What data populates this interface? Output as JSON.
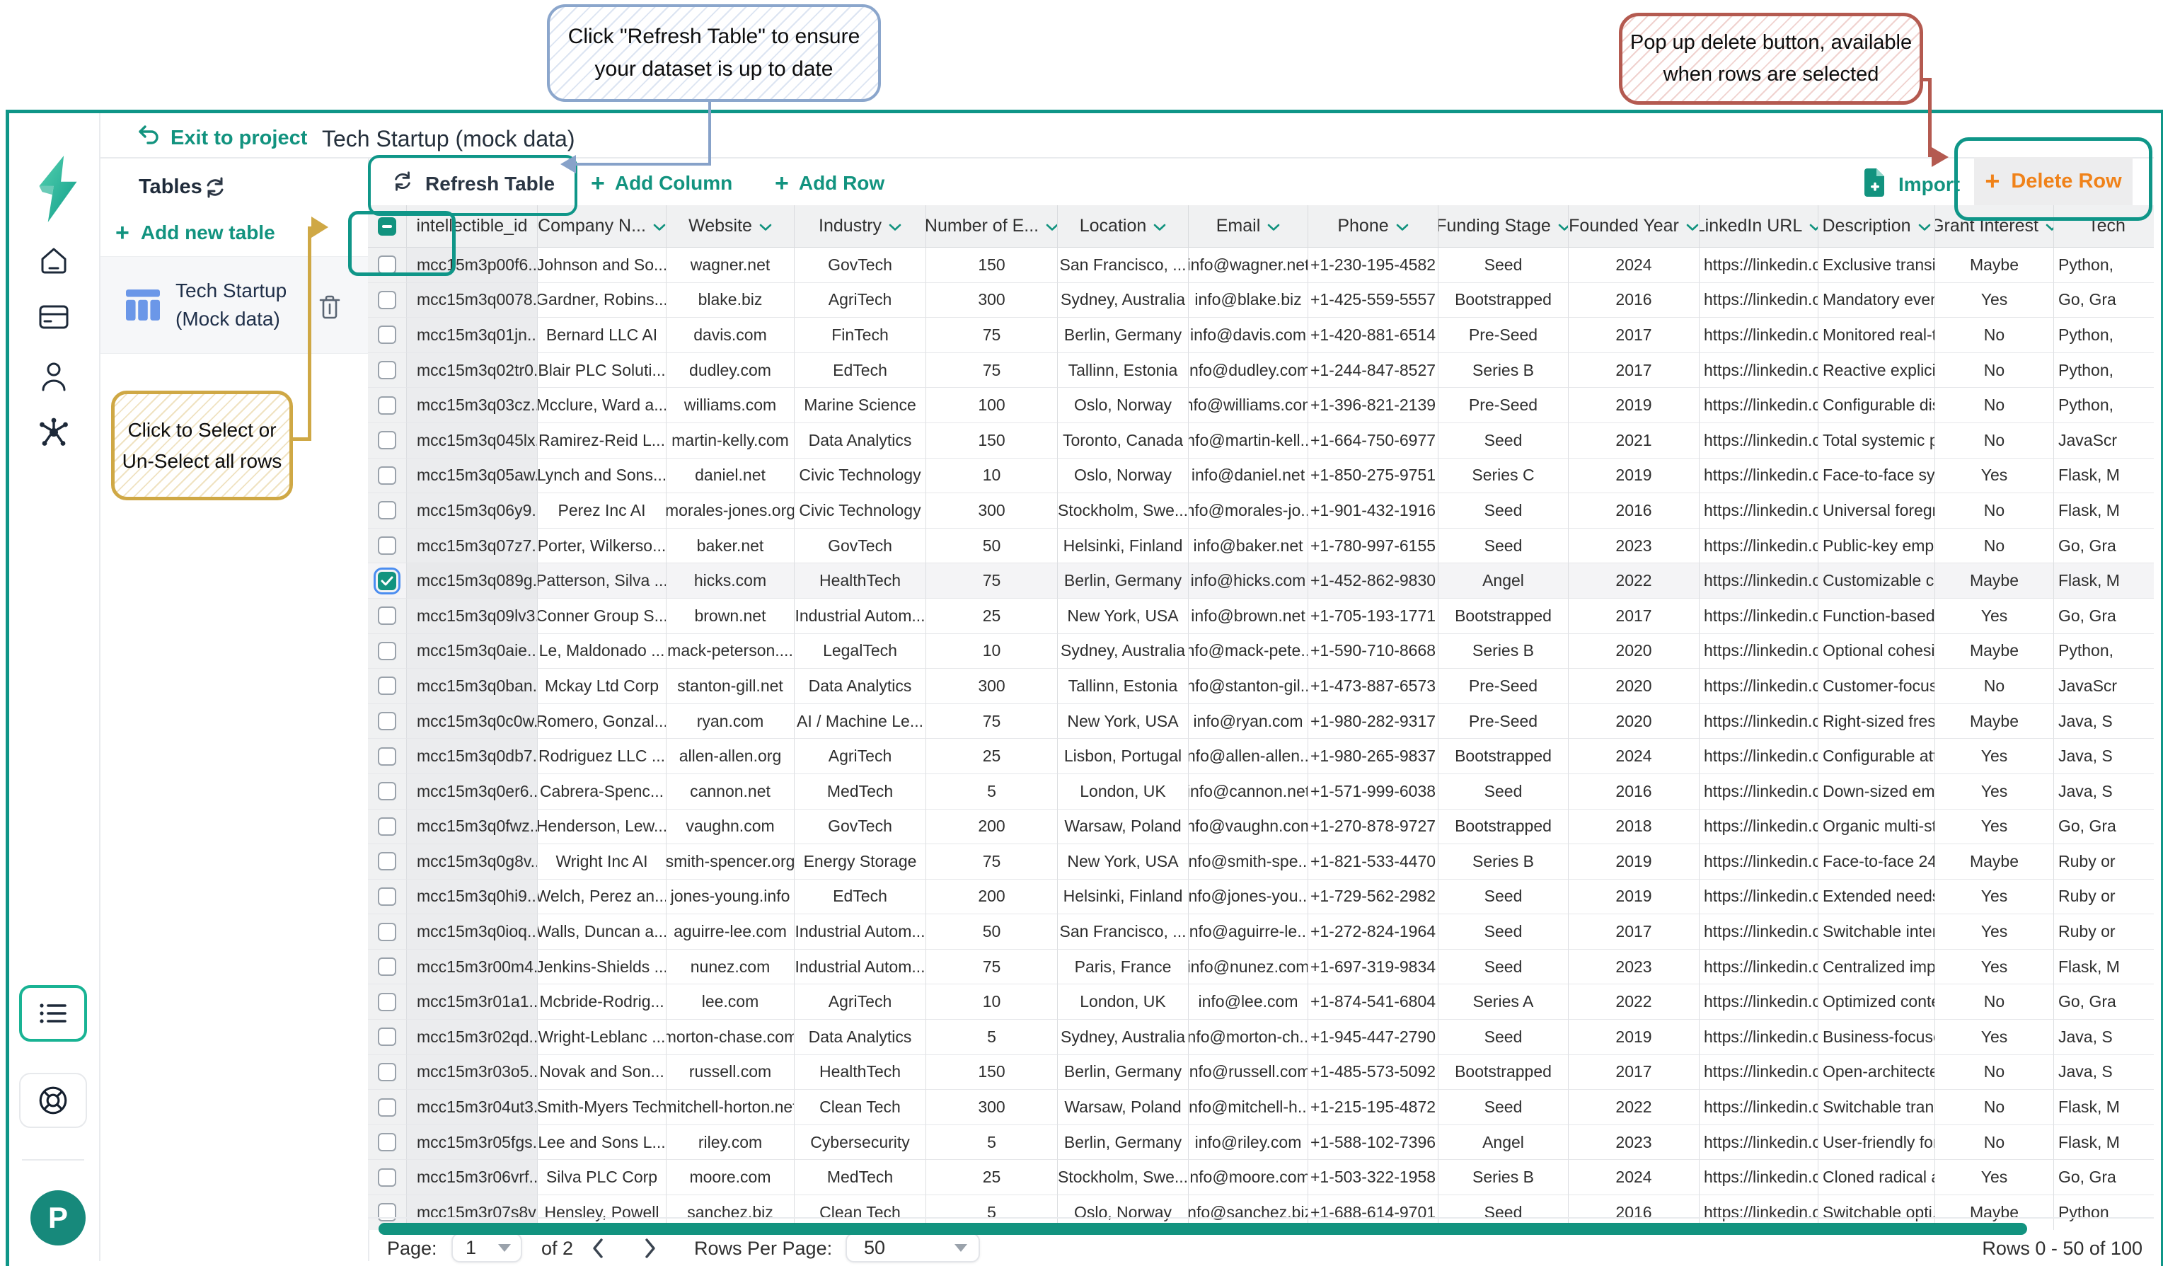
{
  "annotations": {
    "refresh_callout": {
      "line1": "Click \"Refresh Table\" to ensure",
      "line2": "your dataset is up to date"
    },
    "delete_callout": {
      "line1": "Pop up delete button, available",
      "line2": "when rows are selected"
    },
    "select_callout": {
      "line1": "Click to Select or",
      "line2": "Un-Select all rows"
    }
  },
  "app": {
    "exit_label": "Exit to project",
    "title": "Tech Startup (mock data)"
  },
  "user": {
    "initial": "P"
  },
  "icons": {
    "plus": "+"
  },
  "sidebar": {
    "tables_label": "Tables",
    "add_new_table_label": "Add new table",
    "table_item": {
      "name_line1": "Tech Startup",
      "name_line2": "(Mock data)"
    }
  },
  "toolbar": {
    "refresh_label": "Refresh Table",
    "add_column_label": "Add Column",
    "add_row_label": "Add Row",
    "import_label": "Import",
    "delete_row_label": "Delete Row"
  },
  "footer": {
    "page_label": "Page:",
    "page_value": "1",
    "of_label": "of 2",
    "rows_per_page_label": "Rows Per Page:",
    "rows_per_page_value": "50",
    "range_label": "Rows 0 - 50 of 100"
  },
  "colors": {
    "accent_teal": "#12937f",
    "frame_teal": "#0f9688",
    "delete_orange": "#f08219",
    "callout_blue_border": "#8ba6cc",
    "callout_red_border": "#b45a50",
    "callout_yellow_border": "#cfa845",
    "table_icon_blue": "#6b97e8",
    "checkbox_focus_blue": "#4b8df0"
  },
  "table": {
    "checked_row_index": 9,
    "columns": [
      {
        "label": "intellectible_id",
        "chevron": false
      },
      {
        "label": "Company N...",
        "chevron": true
      },
      {
        "label": "Website",
        "chevron": true
      },
      {
        "label": "Industry",
        "chevron": true
      },
      {
        "label": "Number of E...",
        "chevron": true
      },
      {
        "label": "Location",
        "chevron": true
      },
      {
        "label": "Email",
        "chevron": true
      },
      {
        "label": "Phone",
        "chevron": true
      },
      {
        "label": "Funding Stage",
        "chevron": true
      },
      {
        "label": "Founded Year",
        "chevron": true
      },
      {
        "label": "LinkedIn URL",
        "chevron": true
      },
      {
        "label": "Description",
        "chevron": true
      },
      {
        "label": "Grant Interest",
        "chevron": true
      },
      {
        "label": "Tech",
        "chevron": false
      }
    ],
    "rows": [
      [
        "mcc15m3p00f6...",
        "Johnson and So...",
        "wagner.net",
        "GovTech",
        "150",
        "San Francisco, ...",
        "info@wagner.net",
        "+1-230-195-4582",
        "Seed",
        "2024",
        "https://linkedin.c...",
        "Exclusive transit...",
        "Maybe",
        "Python,"
      ],
      [
        "mcc15m3q0078...",
        "Gardner, Robins...",
        "blake.biz",
        "AgriTech",
        "300",
        "Sydney, Australia",
        "info@blake.biz",
        "+1-425-559-5557",
        "Bootstrapped",
        "2016",
        "https://linkedin.c...",
        "Mandatory even...",
        "Yes",
        "Go, Gra"
      ],
      [
        "mcc15m3q01jn...",
        "Bernard LLC AI",
        "davis.com",
        "FinTech",
        "75",
        "Berlin, Germany",
        "info@davis.com",
        "+1-420-881-6514",
        "Pre-Seed",
        "2017",
        "https://linkedin.c...",
        "Monitored real-ti...",
        "No",
        "Python,"
      ],
      [
        "mcc15m3q02tr0...",
        "Blair PLC Soluti...",
        "dudley.com",
        "EdTech",
        "75",
        "Tallinn, Estonia",
        "info@dudley.com",
        "+1-244-847-8527",
        "Series B",
        "2017",
        "https://linkedin.c...",
        "Reactive explicit...",
        "No",
        "Python,"
      ],
      [
        "mcc15m3q03cz...",
        "Mcclure, Ward a...",
        "williams.com",
        "Marine Science",
        "100",
        "Oslo, Norway",
        "info@williams.com",
        "+1-396-821-2139",
        "Pre-Seed",
        "2019",
        "https://linkedin.c...",
        "Configurable dis...",
        "No",
        "Python,"
      ],
      [
        "mcc15m3q045lx...",
        "Ramirez-Reid L...",
        "martin-kelly.com",
        "Data Analytics",
        "150",
        "Toronto, Canada",
        "info@martin-kell...",
        "+1-664-750-6977",
        "Seed",
        "2021",
        "https://linkedin.c...",
        "Total systemic p...",
        "No",
        "JavaScr"
      ],
      [
        "mcc15m3q05aw...",
        "Lynch and Sons...",
        "daniel.net",
        "Civic Technology",
        "10",
        "Oslo, Norway",
        "info@daniel.net",
        "+1-850-275-9751",
        "Series C",
        "2019",
        "https://linkedin.c...",
        "Face-to-face sy...",
        "Yes",
        "Flask, M"
      ],
      [
        "mcc15m3q06y9...",
        "Perez Inc AI",
        "morales-jones.org",
        "Civic Technology",
        "300",
        "Stockholm, Swe...",
        "info@morales-jo...",
        "+1-901-432-1916",
        "Seed",
        "2016",
        "https://linkedin.c...",
        "Universal foregr...",
        "No",
        "Flask, M"
      ],
      [
        "mcc15m3q07z7...",
        "Porter, Wilkerso...",
        "baker.net",
        "GovTech",
        "50",
        "Helsinki, Finland",
        "info@baker.net",
        "+1-780-997-6155",
        "Seed",
        "2023",
        "https://linkedin.c...",
        "Public-key emp...",
        "No",
        "Go, Gra"
      ],
      [
        "mcc15m3q089g...",
        "Patterson, Silva ...",
        "hicks.com",
        "HealthTech",
        "75",
        "Berlin, Germany",
        "info@hicks.com",
        "+1-452-862-9830",
        "Angel",
        "2022",
        "https://linkedin.c...",
        "Customizable c...",
        "Maybe",
        "Flask, M"
      ],
      [
        "mcc15m3q09lv3...",
        "Conner Group S...",
        "brown.net",
        "Industrial Autom...",
        "25",
        "New York, USA",
        "info@brown.net",
        "+1-705-193-1771",
        "Bootstrapped",
        "2017",
        "https://linkedin.c...",
        "Function-based ...",
        "Yes",
        "Go, Gra"
      ],
      [
        "mcc15m3q0aie...",
        "Le, Maldonado ...",
        "mack-peterson....",
        "LegalTech",
        "10",
        "Sydney, Australia",
        "info@mack-pete...",
        "+1-590-710-8668",
        "Series B",
        "2020",
        "https://linkedin.c...",
        "Optional cohesi...",
        "Maybe",
        "Python,"
      ],
      [
        "mcc15m3q0ban...",
        "Mckay Ltd Corp",
        "stanton-gill.net",
        "Data Analytics",
        "300",
        "Tallinn, Estonia",
        "info@stanton-gil...",
        "+1-473-887-6573",
        "Pre-Seed",
        "2020",
        "https://linkedin.c...",
        "Customer-focus...",
        "No",
        "JavaScr"
      ],
      [
        "mcc15m3q0c0w...",
        "Romero, Gonzal...",
        "ryan.com",
        "AI / Machine Le...",
        "75",
        "New York, USA",
        "info@ryan.com",
        "+1-980-282-9317",
        "Pre-Seed",
        "2020",
        "https://linkedin.c...",
        "Right-sized fres...",
        "Maybe",
        "Java, S"
      ],
      [
        "mcc15m3q0db7...",
        "Rodriguez LLC ...",
        "allen-allen.org",
        "AgriTech",
        "25",
        "Lisbon, Portugal",
        "info@allen-allen...",
        "+1-980-265-9837",
        "Bootstrapped",
        "2024",
        "https://linkedin.c...",
        "Configurable atti...",
        "Yes",
        "Java, S"
      ],
      [
        "mcc15m3q0er6...",
        "Cabrera-Spenc...",
        "cannon.net",
        "MedTech",
        "5",
        "London, UK",
        "info@cannon.net",
        "+1-571-999-6038",
        "Seed",
        "2016",
        "https://linkedin.c...",
        "Down-sized em...",
        "Yes",
        "Java, S"
      ],
      [
        "mcc15m3q0fwz...",
        "Henderson, Lew...",
        "vaughn.com",
        "GovTech",
        "200",
        "Warsaw, Poland",
        "info@vaughn.com",
        "+1-270-878-9727",
        "Bootstrapped",
        "2018",
        "https://linkedin.c...",
        "Organic multi-st...",
        "Yes",
        "Go, Gra"
      ],
      [
        "mcc15m3q0g8v...",
        "Wright Inc AI",
        "smith-spencer.org",
        "Energy Storage",
        "75",
        "New York, USA",
        "info@smith-spe...",
        "+1-821-533-4470",
        "Series B",
        "2019",
        "https://linkedin.c...",
        "Face-to-face 24...",
        "Maybe",
        "Ruby or"
      ],
      [
        "mcc15m3q0hi9...",
        "Welch, Perez an...",
        "jones-young.info",
        "EdTech",
        "200",
        "Helsinki, Finland",
        "info@jones-you...",
        "+1-729-562-2982",
        "Seed",
        "2019",
        "https://linkedin.c...",
        "Extended needs...",
        "Yes",
        "Ruby or"
      ],
      [
        "mcc15m3q0ioq...",
        "Walls, Duncan a...",
        "aguirre-lee.com",
        "Industrial Autom...",
        "50",
        "San Francisco, ...",
        "info@aguirre-le...",
        "+1-272-824-1964",
        "Seed",
        "2017",
        "https://linkedin.c...",
        "Switchable inter...",
        "Yes",
        "Ruby or"
      ],
      [
        "mcc15m3r00m4...",
        "Jenkins-Shields ...",
        "nunez.com",
        "Industrial Autom...",
        "75",
        "Paris, France",
        "info@nunez.com",
        "+1-697-319-9834",
        "Seed",
        "2023",
        "https://linkedin.c...",
        "Centralized imp...",
        "Yes",
        "Flask, M"
      ],
      [
        "mcc15m3r01a1...",
        "Mcbride-Rodrig...",
        "lee.com",
        "AgriTech",
        "10",
        "London, UK",
        "info@lee.com",
        "+1-874-541-6804",
        "Series A",
        "2022",
        "https://linkedin.c...",
        "Optimized conte...",
        "No",
        "Go, Gra"
      ],
      [
        "mcc15m3r02qd...",
        "Wright-Leblanc ...",
        "morton-chase.com",
        "Data Analytics",
        "5",
        "Sydney, Australia",
        "info@morton-ch...",
        "+1-945-447-2790",
        "Seed",
        "2019",
        "https://linkedin.c...",
        "Business-focuse...",
        "Yes",
        "Java, S"
      ],
      [
        "mcc15m3r03o5...",
        "Novak and Son...",
        "russell.com",
        "HealthTech",
        "150",
        "Berlin, Germany",
        "info@russell.com",
        "+1-485-573-5092",
        "Bootstrapped",
        "2017",
        "https://linkedin.c...",
        "Open-architecte...",
        "No",
        "Java, S"
      ],
      [
        "mcc15m3r04ut3...",
        "Smith-Myers Tech",
        "mitchell-horton.net",
        "Clean Tech",
        "300",
        "Warsaw, Poland",
        "info@mitchell-h...",
        "+1-215-195-4872",
        "Seed",
        "2022",
        "https://linkedin.c...",
        "Switchable trans...",
        "No",
        "Flask, M"
      ],
      [
        "mcc15m3r05fgs...",
        "Lee and Sons L...",
        "riley.com",
        "Cybersecurity",
        "5",
        "Berlin, Germany",
        "info@riley.com",
        "+1-588-102-7396",
        "Angel",
        "2023",
        "https://linkedin.c...",
        "User-friendly for...",
        "No",
        "Flask, M"
      ],
      [
        "mcc15m3r06vrf...",
        "Silva PLC Corp",
        "moore.com",
        "MedTech",
        "25",
        "Stockholm, Swe...",
        "info@moore.com",
        "+1-503-322-1958",
        "Series B",
        "2024",
        "https://linkedin.c...",
        "Cloned radical a...",
        "Yes",
        "Go, Gra"
      ],
      [
        "mcc15m3r07s8v",
        "Hensley, Powell",
        "sanchez.biz",
        "Clean Tech",
        "5",
        "Oslo, Norway",
        "info@sanchez.biz",
        "+1-688-614-9701",
        "Seed",
        "2016",
        "https://linkedin.c...",
        "Switchable opti...",
        "Maybe",
        "Python"
      ]
    ]
  }
}
